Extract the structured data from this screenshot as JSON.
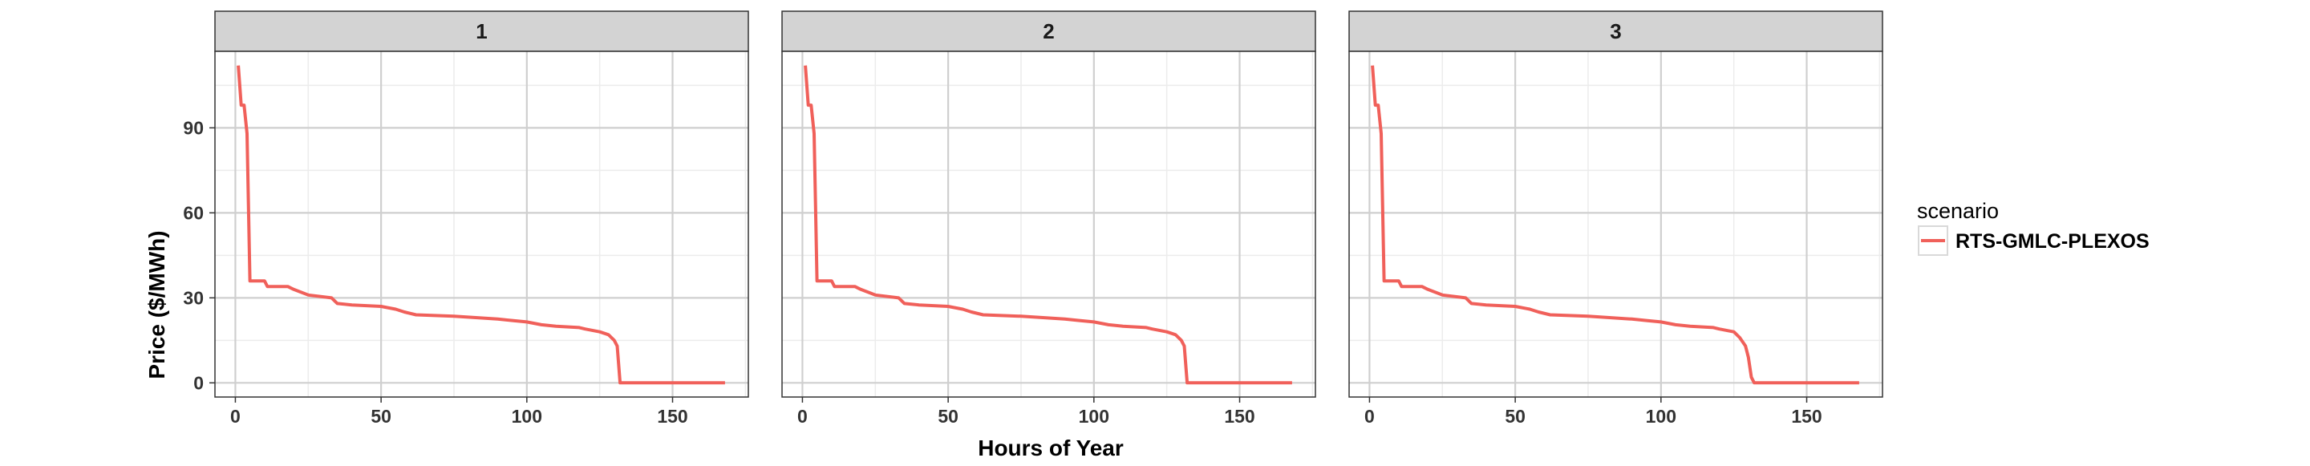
{
  "chart_data": {
    "type": "line",
    "facet_variable_labels": [
      "1",
      "2",
      "3"
    ],
    "xlabel": "Hours of Year",
    "ylabel": "Price ($/MWh)",
    "xlim": [
      -7,
      176
    ],
    "ylim": [
      -5,
      117
    ],
    "x_ticks": [
      0,
      50,
      100,
      150
    ],
    "y_ticks": [
      0,
      30,
      60,
      90
    ],
    "x_tick_labels": [
      "0",
      "50",
      "100",
      "150"
    ],
    "y_tick_labels": [
      "0",
      "30",
      "60",
      "90"
    ],
    "grid": true,
    "legend": {
      "title": "scenario",
      "position": "right",
      "entries": [
        "RTS-GMLC-PLEXOS"
      ]
    },
    "colors": {
      "series": "#f0605a",
      "strip": "#d3d3d3",
      "grid_major": "#cfcfcf",
      "grid_minor": "#ececec",
      "border": "#333333"
    },
    "panels": [
      {
        "facet": "1",
        "series": [
          {
            "name": "RTS-GMLC-PLEXOS",
            "points": [
              [
                1,
                112
              ],
              [
                2,
                98
              ],
              [
                3,
                98
              ],
              [
                4,
                88
              ],
              [
                5,
                36
              ],
              [
                10,
                36
              ],
              [
                11,
                34
              ],
              [
                18,
                34
              ],
              [
                20,
                33
              ],
              [
                25,
                31
              ],
              [
                33,
                30
              ],
              [
                35,
                28
              ],
              [
                40,
                27.5
              ],
              [
                50,
                27
              ],
              [
                55,
                26
              ],
              [
                58,
                25
              ],
              [
                62,
                24
              ],
              [
                75,
                23.5
              ],
              [
                90,
                22.5
              ],
              [
                95,
                22
              ],
              [
                100,
                21.5
              ],
              [
                105,
                20.5
              ],
              [
                110,
                20
              ],
              [
                118,
                19.5
              ],
              [
                120,
                19
              ],
              [
                125,
                18
              ],
              [
                128,
                17
              ],
              [
                130,
                15
              ],
              [
                131,
                13
              ],
              [
                132,
                0
              ],
              [
                168,
                0
              ]
            ]
          }
        ]
      },
      {
        "facet": "2",
        "series": [
          {
            "name": "RTS-GMLC-PLEXOS",
            "points": [
              [
                1,
                112
              ],
              [
                2,
                98
              ],
              [
                3,
                98
              ],
              [
                4,
                88
              ],
              [
                5,
                36
              ],
              [
                10,
                36
              ],
              [
                11,
                34
              ],
              [
                18,
                34
              ],
              [
                20,
                33
              ],
              [
                25,
                31
              ],
              [
                33,
                30
              ],
              [
                35,
                28
              ],
              [
                40,
                27.5
              ],
              [
                50,
                27
              ],
              [
                55,
                26
              ],
              [
                58,
                25
              ],
              [
                62,
                24
              ],
              [
                75,
                23.5
              ],
              [
                90,
                22.5
              ],
              [
                95,
                22
              ],
              [
                100,
                21.5
              ],
              [
                105,
                20.5
              ],
              [
                110,
                20
              ],
              [
                118,
                19.5
              ],
              [
                120,
                19
              ],
              [
                125,
                18
              ],
              [
                128,
                17
              ],
              [
                130,
                15
              ],
              [
                131,
                13
              ],
              [
                132,
                0
              ],
              [
                168,
                0
              ]
            ]
          }
        ]
      },
      {
        "facet": "3",
        "series": [
          {
            "name": "RTS-GMLC-PLEXOS",
            "points": [
              [
                1,
                112
              ],
              [
                2,
                98
              ],
              [
                3,
                98
              ],
              [
                4,
                88
              ],
              [
                5,
                36
              ],
              [
                10,
                36
              ],
              [
                11,
                34
              ],
              [
                18,
                34
              ],
              [
                20,
                33
              ],
              [
                25,
                31
              ],
              [
                33,
                30
              ],
              [
                35,
                28
              ],
              [
                40,
                27.5
              ],
              [
                50,
                27
              ],
              [
                55,
                26
              ],
              [
                58,
                25
              ],
              [
                62,
                24
              ],
              [
                75,
                23.5
              ],
              [
                90,
                22.5
              ],
              [
                95,
                22
              ],
              [
                100,
                21.5
              ],
              [
                105,
                20.5
              ],
              [
                110,
                20
              ],
              [
                118,
                19.5
              ],
              [
                120,
                19
              ],
              [
                125,
                18
              ],
              [
                127,
                16
              ],
              [
                129,
                13
              ],
              [
                130,
                9
              ],
              [
                131,
                2
              ],
              [
                132,
                0
              ],
              [
                168,
                0
              ]
            ]
          }
        ]
      }
    ]
  }
}
